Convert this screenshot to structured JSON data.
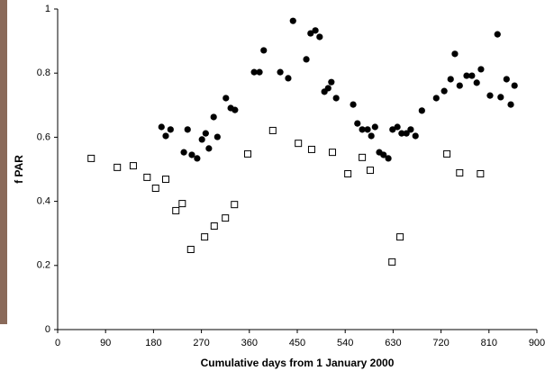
{
  "chart_data": {
    "type": "scatter",
    "xlabel": "Cumulative days from 1 January 2000",
    "ylabel": "f PAR",
    "xlim": [
      0,
      900
    ],
    "xticks": [
      0,
      90,
      180,
      270,
      360,
      450,
      540,
      630,
      720,
      810,
      900
    ],
    "ylim": [
      0,
      1
    ],
    "yticks": [
      0,
      0.2,
      0.4,
      0.6,
      0.8,
      1
    ],
    "series": [
      {
        "marker": "circle",
        "color": "#000000",
        "x": [
          195,
          203,
          212,
          237,
          244,
          252,
          262,
          271,
          278,
          284,
          293,
          300,
          316,
          325,
          333,
          369,
          379,
          387,
          418,
          433,
          442,
          467,
          475,
          484,
          492,
          501,
          508,
          514,
          523,
          555,
          563,
          572,
          582,
          589,
          596,
          604,
          612,
          621,
          629,
          638,
          646,
          655,
          663,
          672,
          684,
          711,
          726,
          738,
          746,
          755,
          768,
          778,
          787,
          795,
          812,
          826,
          832,
          843,
          851,
          858
        ],
        "values": [
          0.632,
          0.604,
          0.624,
          0.553,
          0.624,
          0.545,
          0.534,
          0.593,
          0.612,
          0.565,
          0.663,
          0.601,
          0.722,
          0.691,
          0.685,
          0.803,
          0.803,
          0.871,
          0.803,
          0.784,
          0.963,
          0.843,
          0.924,
          0.933,
          0.913,
          0.742,
          0.753,
          0.772,
          0.722,
          0.702,
          0.643,
          0.624,
          0.624,
          0.604,
          0.632,
          0.553,
          0.545,
          0.534,
          0.624,
          0.632,
          0.612,
          0.612,
          0.624,
          0.604,
          0.683,
          0.722,
          0.744,
          0.781,
          0.86,
          0.761,
          0.792,
          0.792,
          0.77,
          0.812,
          0.73,
          0.921,
          0.725,
          0.781,
          0.702,
          0.761
        ]
      },
      {
        "marker": "square-open",
        "color": "#000000",
        "x": [
          63,
          112,
          142,
          168,
          184,
          203,
          222,
          234,
          250,
          276,
          294,
          315,
          332,
          357,
          404,
          452,
          477,
          516,
          545,
          572,
          587,
          628,
          643,
          731,
          755,
          794
        ],
        "values": [
          0.534,
          0.506,
          0.511,
          0.475,
          0.441,
          0.469,
          0.371,
          0.393,
          0.25,
          0.289,
          0.323,
          0.348,
          0.39,
          0.548,
          0.621,
          0.581,
          0.562,
          0.553,
          0.486,
          0.537,
          0.497,
          0.211,
          0.289,
          0.548,
          0.489,
          0.486
        ]
      }
    ]
  }
}
